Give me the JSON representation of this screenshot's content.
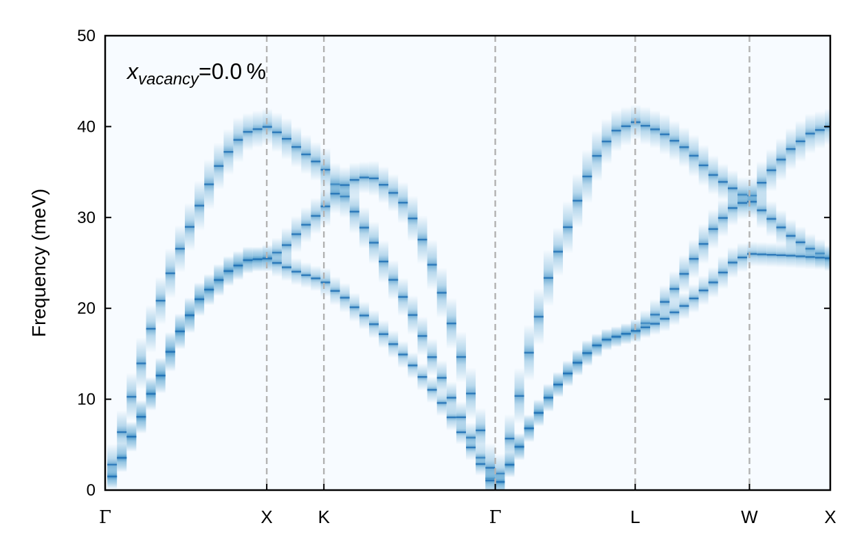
{
  "chart_data": {
    "type": "heatmap",
    "title": "",
    "xlabel": "",
    "ylabel": "Frequency (meV)",
    "ylim": [
      0,
      50
    ],
    "xlim": [
      0,
      4.4873
    ],
    "yticks": [
      0,
      10,
      20,
      30,
      40,
      50
    ],
    "grid": false,
    "annotation": {
      "var": "x",
      "sub": "vacancy",
      "value": "=0.0 %"
    },
    "high_symmetry_points": [
      {
        "label": "Γ",
        "x": 0
      },
      {
        "label": "X",
        "x": 1.0
      },
      {
        "label": "K",
        "x": 1.3536
      },
      {
        "label": "Γ",
        "x": 2.4142
      },
      {
        "label": "L",
        "x": 3.2802
      },
      {
        "label": "W",
        "x": 3.9873
      },
      {
        "label": "X",
        "x": 4.4873
      }
    ],
    "colors": {
      "background": "#f7fbff",
      "band": "#2171b5",
      "band_light": "#6baed6",
      "dashed": "#b4b4b4"
    },
    "series": [
      {
        "name": "branch-1",
        "points": [
          [
            0,
            0
          ],
          [
            0.043,
            2.8
          ],
          [
            0.089,
            5.5
          ],
          [
            0.132,
            8.2
          ],
          [
            0.174,
            11
          ],
          [
            0.217,
            13.5
          ],
          [
            0.251,
            16
          ],
          [
            0.293,
            18.3
          ],
          [
            0.336,
            20.5
          ],
          [
            0.379,
            22.6
          ],
          [
            0.421,
            24.8
          ],
          [
            0.464,
            26.6
          ],
          [
            0.506,
            28.3
          ],
          [
            0.583,
            31.3
          ],
          [
            0.625,
            33
          ],
          [
            0.689,
            35.3
          ],
          [
            0.774,
            37.5
          ],
          [
            0.859,
            39.3
          ],
          [
            1.0,
            40
          ],
          [
            1.1,
            39
          ],
          [
            1.2,
            37.5
          ],
          [
            1.354,
            35.5
          ],
          [
            1.416,
            33.8
          ],
          [
            1.476,
            32.5
          ],
          [
            1.531,
            31
          ],
          [
            1.591,
            29.2
          ],
          [
            1.655,
            27.5
          ],
          [
            1.71,
            25.6
          ],
          [
            1.765,
            23.7
          ],
          [
            1.829,
            21.7
          ],
          [
            1.889,
            19.8
          ],
          [
            1.944,
            17.7
          ],
          [
            2.003,
            15.4
          ],
          [
            2.063,
            13.1
          ],
          [
            2.122,
            10.9
          ],
          [
            2.182,
            8.8
          ],
          [
            2.241,
            6.6
          ],
          [
            2.297,
            4.5
          ],
          [
            2.361,
            2.2
          ],
          [
            2.414,
            0
          ],
          [
            2.497,
            5.2
          ],
          [
            2.561,
            10.2
          ],
          [
            2.624,
            15.2
          ],
          [
            2.697,
            20
          ],
          [
            2.752,
            24
          ],
          [
            2.85,
            28.3
          ],
          [
            2.922,
            31.8
          ],
          [
            2.994,
            35
          ],
          [
            3.063,
            37.5
          ],
          [
            3.156,
            39.5
          ],
          [
            3.28,
            40.5
          ],
          [
            3.433,
            39.5
          ],
          [
            3.603,
            37.5
          ],
          [
            3.773,
            34.5
          ],
          [
            3.986,
            32
          ],
          [
            4.113,
            35
          ],
          [
            4.241,
            37.5
          ],
          [
            4.368,
            39.3
          ],
          [
            4.487,
            40
          ]
        ]
      },
      {
        "name": "branch-2",
        "points": [
          [
            0,
            0
          ],
          [
            0.043,
            1.5
          ],
          [
            0.089,
            3
          ],
          [
            0.132,
            4.7
          ],
          [
            0.174,
            6.3
          ],
          [
            0.217,
            7.8
          ],
          [
            0.251,
            9.3
          ],
          [
            0.293,
            11
          ],
          [
            0.336,
            12.3
          ],
          [
            0.421,
            16
          ],
          [
            0.464,
            17.5
          ],
          [
            0.583,
            21
          ],
          [
            0.753,
            24
          ],
          [
            0.881,
            25.3
          ],
          [
            1.0,
            25.5
          ],
          [
            1.1,
            26.5
          ],
          [
            1.2,
            28.5
          ],
          [
            1.354,
            31
          ],
          [
            1.416,
            32.5
          ],
          [
            1.476,
            33.5
          ],
          [
            1.561,
            34.3
          ],
          [
            1.646,
            34.5
          ],
          [
            1.731,
            33.5
          ],
          [
            1.829,
            32
          ],
          [
            1.889,
            30.4
          ],
          [
            1.944,
            28.4
          ],
          [
            2.003,
            25.8
          ],
          [
            2.063,
            22.8
          ],
          [
            2.122,
            19.6
          ],
          [
            2.182,
            16
          ],
          [
            2.241,
            12.2
          ],
          [
            2.297,
            8.2
          ],
          [
            2.361,
            4.2
          ],
          [
            2.414,
            0
          ],
          [
            2.488,
            2.3
          ],
          [
            2.561,
            4.7
          ],
          [
            2.629,
            7
          ],
          [
            2.701,
            9
          ],
          [
            2.773,
            11
          ],
          [
            2.846,
            12.5
          ],
          [
            2.922,
            14
          ],
          [
            3.007,
            15.5
          ],
          [
            3.092,
            16.5
          ],
          [
            3.28,
            17.5
          ],
          [
            3.39,
            19
          ],
          [
            3.518,
            22
          ],
          [
            3.645,
            25.5
          ],
          [
            3.773,
            29
          ],
          [
            3.879,
            31
          ],
          [
            3.986,
            32
          ],
          [
            4.113,
            30
          ],
          [
            4.241,
            28
          ],
          [
            4.368,
            26.5
          ],
          [
            4.487,
            25.5
          ]
        ]
      },
      {
        "name": "branch-3",
        "points": [
          [
            0,
            0
          ],
          [
            0.043,
            1.5
          ],
          [
            0.089,
            3
          ],
          [
            0.132,
            4.7
          ],
          [
            0.174,
            6.3
          ],
          [
            0.217,
            7.8
          ],
          [
            0.251,
            9.3
          ],
          [
            0.293,
            11
          ],
          [
            0.336,
            12.3
          ],
          [
            0.421,
            16
          ],
          [
            0.464,
            17.5
          ],
          [
            0.583,
            21
          ],
          [
            0.753,
            24
          ],
          [
            0.881,
            25.3
          ],
          [
            1.0,
            25.5
          ],
          [
            1.1,
            24.7
          ],
          [
            1.2,
            23.9
          ],
          [
            1.354,
            23
          ],
          [
            1.416,
            22
          ],
          [
            1.476,
            21.3
          ],
          [
            1.531,
            20.3
          ],
          [
            1.591,
            19.4
          ],
          [
            1.655,
            18.4
          ],
          [
            1.71,
            17.4
          ],
          [
            1.765,
            16.4
          ],
          [
            1.829,
            15.2
          ],
          [
            1.889,
            14
          ],
          [
            1.944,
            12.9
          ],
          [
            2.003,
            11.5
          ],
          [
            2.063,
            10.1
          ],
          [
            2.122,
            8.6
          ],
          [
            2.182,
            6.9
          ],
          [
            2.241,
            5.4
          ],
          [
            2.297,
            3.6
          ],
          [
            2.361,
            1.8
          ],
          [
            2.414,
            0
          ],
          [
            2.488,
            2.3
          ],
          [
            2.561,
            4.7
          ],
          [
            2.629,
            7
          ],
          [
            2.701,
            9
          ],
          [
            2.773,
            11
          ],
          [
            2.846,
            12.5
          ],
          [
            2.922,
            14
          ],
          [
            3.007,
            15.5
          ],
          [
            3.092,
            16.5
          ],
          [
            3.28,
            17.5
          ],
          [
            3.433,
            18.5
          ],
          [
            3.603,
            20.5
          ],
          [
            3.773,
            23
          ],
          [
            3.879,
            25
          ],
          [
            3.986,
            26
          ],
          [
            4.241,
            25.8
          ],
          [
            4.487,
            25.5
          ]
        ]
      }
    ]
  }
}
